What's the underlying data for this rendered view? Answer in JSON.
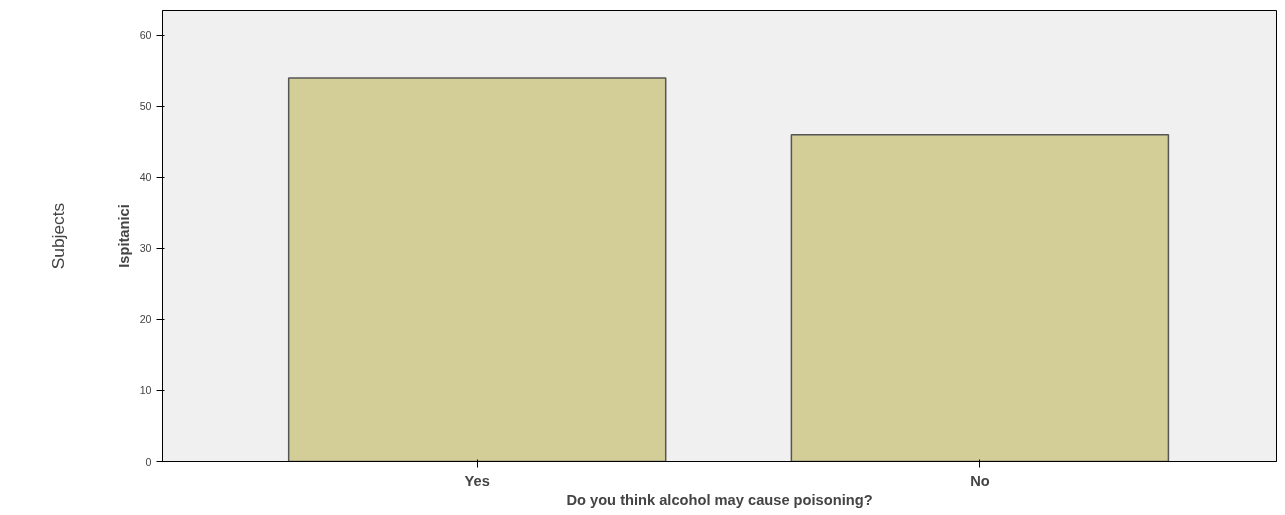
{
  "chart_data": {
    "type": "bar",
    "xlabel": "Do you think alcohol may cause poisoning?",
    "ylabel": "Ispitanici",
    "annotations": [
      "Subjects"
    ],
    "categories": [
      "Yes",
      "No"
    ],
    "values": [
      54,
      46
    ],
    "color": "#d3ce97",
    "ylim": [
      0,
      63.5
    ],
    "yticks": [
      0,
      10,
      20,
      30,
      40,
      50,
      60
    ],
    "grid": false
  }
}
